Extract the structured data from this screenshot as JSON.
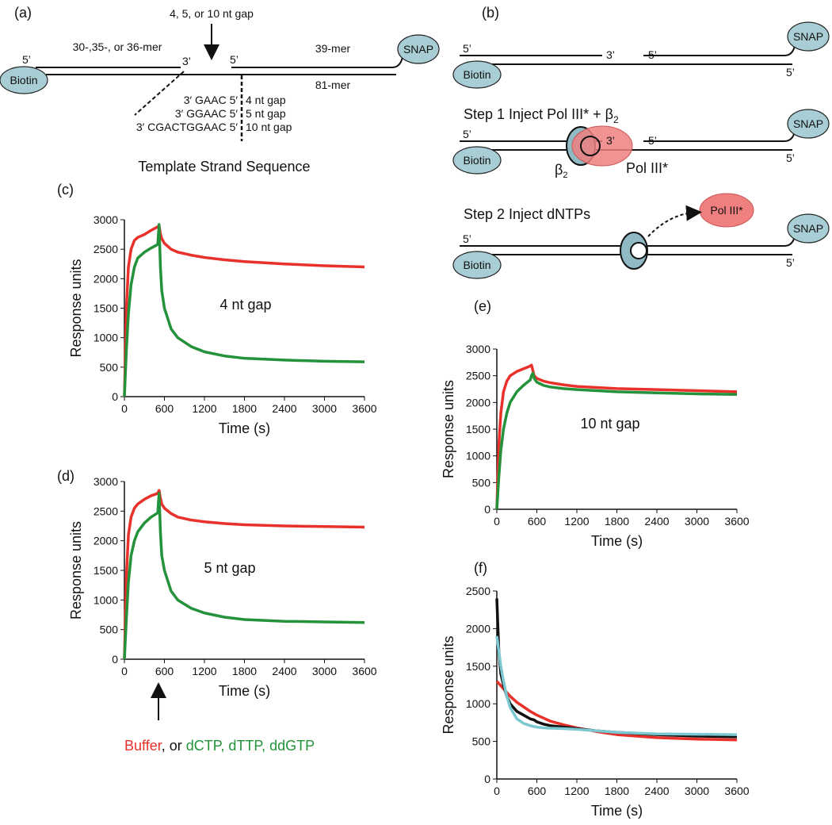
{
  "diagram_a": {
    "label": "(a)",
    "gap": "4, 5, or 10 nt gap",
    "primer": "30-,35-, or 36-mer",
    "p5a": "5’",
    "p3": "3’",
    "p5b": "5’",
    "downstream": "39-mer",
    "template": "81-mer",
    "snap": "SNAP",
    "biotin": "Biotin",
    "seq": [
      "3′ GAAC 5′",
      "3′ GGAAC 5′",
      "3′ CGACTGGAAC 5′"
    ],
    "seq_gap": [
      "4 nt gap",
      "5 nt gap",
      "10 nt gap"
    ],
    "caption": "Template Strand Sequence"
  },
  "diagram_b": {
    "label": "(b)",
    "five": "5’",
    "three": "3’",
    "snap": "SNAP",
    "biotin": "Biotin",
    "step1": "Step 1 Inject Pol III* + β",
    "sub": "2",
    "beta": "β",
    "pol": "Pol III*",
    "step2": "Step 2 Inject dNTPs"
  },
  "arrow_caption": {
    "buffer": "Buffer",
    "or": ", or ",
    "dntps": "dCTP, dTTP, ddGTP"
  },
  "chart_data": [
    {
      "type": "line",
      "label": "(c)",
      "annotation": "4 nt gap",
      "xlabel": "Time (s)",
      "ylabel": "Response units",
      "x": [
        0,
        30,
        60,
        100,
        150,
        200,
        300,
        400,
        500,
        520,
        540,
        560,
        600,
        700,
        800,
        1000,
        1200,
        1500,
        1800,
        2400,
        3000,
        3600
      ],
      "series": [
        {
          "color": "#e8312a",
          "values": [
            0,
            1500,
            2200,
            2500,
            2650,
            2700,
            2750,
            2820,
            2880,
            2900,
            2760,
            2680,
            2600,
            2500,
            2450,
            2400,
            2360,
            2320,
            2290,
            2250,
            2220,
            2200
          ]
        },
        {
          "color": "#23923a",
          "values": [
            0,
            800,
            1400,
            1900,
            2200,
            2350,
            2450,
            2520,
            2580,
            2920,
            2200,
            1800,
            1500,
            1150,
            1000,
            850,
            760,
            690,
            650,
            620,
            600,
            590
          ]
        }
      ],
      "xlim": [
        0,
        3600
      ],
      "ylim": [
        0,
        3000
      ],
      "xticks": [
        0,
        600,
        1200,
        1800,
        2400,
        3000,
        3600
      ],
      "yticks": [
        0,
        500,
        1000,
        1500,
        2000,
        2500,
        3000
      ]
    },
    {
      "type": "line",
      "label": "(d)",
      "annotation": "5 nt gap",
      "xlabel": "Time (s)",
      "ylabel": "Response units",
      "x": [
        0,
        30,
        60,
        100,
        150,
        200,
        300,
        400,
        500,
        520,
        540,
        560,
        600,
        700,
        800,
        1000,
        1200,
        1500,
        1800,
        2400,
        3000,
        3600
      ],
      "series": [
        {
          "color": "#e8312a",
          "values": [
            0,
            1400,
            2100,
            2400,
            2550,
            2620,
            2700,
            2760,
            2800,
            2850,
            2720,
            2620,
            2550,
            2460,
            2400,
            2350,
            2320,
            2290,
            2270,
            2250,
            2240,
            2230
          ]
        },
        {
          "color": "#23923a",
          "values": [
            0,
            700,
            1300,
            1750,
            2000,
            2150,
            2300,
            2400,
            2470,
            2800,
            2150,
            1750,
            1500,
            1150,
            1000,
            860,
            780,
            710,
            670,
            640,
            630,
            620
          ]
        }
      ],
      "xlim": [
        0,
        3600
      ],
      "ylim": [
        0,
        3000
      ],
      "xticks": [
        0,
        600,
        1200,
        1800,
        2400,
        3000,
        3600
      ],
      "yticks": [
        0,
        500,
        1000,
        1500,
        2000,
        2500,
        3000
      ]
    },
    {
      "type": "line",
      "label": "(e)",
      "annotation": "10 nt gap",
      "xlabel": "Time (s)",
      "ylabel": "Response units",
      "x": [
        0,
        30,
        60,
        100,
        150,
        200,
        300,
        400,
        500,
        520,
        540,
        560,
        600,
        700,
        800,
        1000,
        1200,
        1500,
        1800,
        2400,
        3000,
        3600
      ],
      "series": [
        {
          "color": "#e8312a",
          "values": [
            0,
            1200,
            1800,
            2200,
            2400,
            2500,
            2580,
            2630,
            2680,
            2700,
            2600,
            2500,
            2450,
            2400,
            2370,
            2330,
            2300,
            2280,
            2260,
            2240,
            2220,
            2200
          ]
        },
        {
          "color": "#23923a",
          "values": [
            0,
            600,
            1100,
            1500,
            1800,
            2000,
            2200,
            2320,
            2420,
            2500,
            2550,
            2450,
            2380,
            2320,
            2290,
            2260,
            2240,
            2220,
            2200,
            2180,
            2160,
            2150
          ]
        }
      ],
      "xlim": [
        0,
        3600
      ],
      "ylim": [
        0,
        3000
      ],
      "xticks": [
        0,
        600,
        1200,
        1800,
        2400,
        3000,
        3600
      ],
      "yticks": [
        0,
        500,
        1000,
        1500,
        2000,
        2500,
        3000
      ]
    },
    {
      "type": "line",
      "label": "(f)",
      "xlabel": "Time (s)",
      "ylabel": "Response units",
      "x": [
        0,
        30,
        60,
        100,
        150,
        200,
        300,
        400,
        500,
        520,
        540,
        560,
        600,
        700,
        800,
        1000,
        1200,
        1500,
        1800,
        2400,
        3000,
        3600
      ],
      "series": [
        {
          "color": "#e8312a",
          "values": [
            1300,
            1270,
            1240,
            1200,
            1150,
            1100,
            1020,
            960,
            900,
            890,
            880,
            870,
            850,
            810,
            770,
            720,
            680,
            630,
            590,
            550,
            530,
            520
          ]
        },
        {
          "color": "#111111",
          "values": [
            2400,
            1700,
            1400,
            1250,
            1100,
            1000,
            900,
            850,
            800,
            795,
            790,
            785,
            760,
            730,
            710,
            690,
            670,
            640,
            620,
            590,
            570,
            560
          ]
        },
        {
          "color": "#7cc8d0",
          "values": [
            1900,
            1700,
            1500,
            1300,
            1100,
            950,
            800,
            740,
            710,
            705,
            700,
            697,
            690,
            680,
            675,
            670,
            660,
            640,
            620,
            600,
            595,
            590
          ]
        }
      ],
      "xlim": [
        0,
        3600
      ],
      "ylim": [
        0,
        2500
      ],
      "xticks": [
        0,
        600,
        1200,
        1800,
        2400,
        3000,
        3600
      ],
      "yticks": [
        0,
        500,
        1000,
        1500,
        2000,
        2500
      ]
    }
  ]
}
